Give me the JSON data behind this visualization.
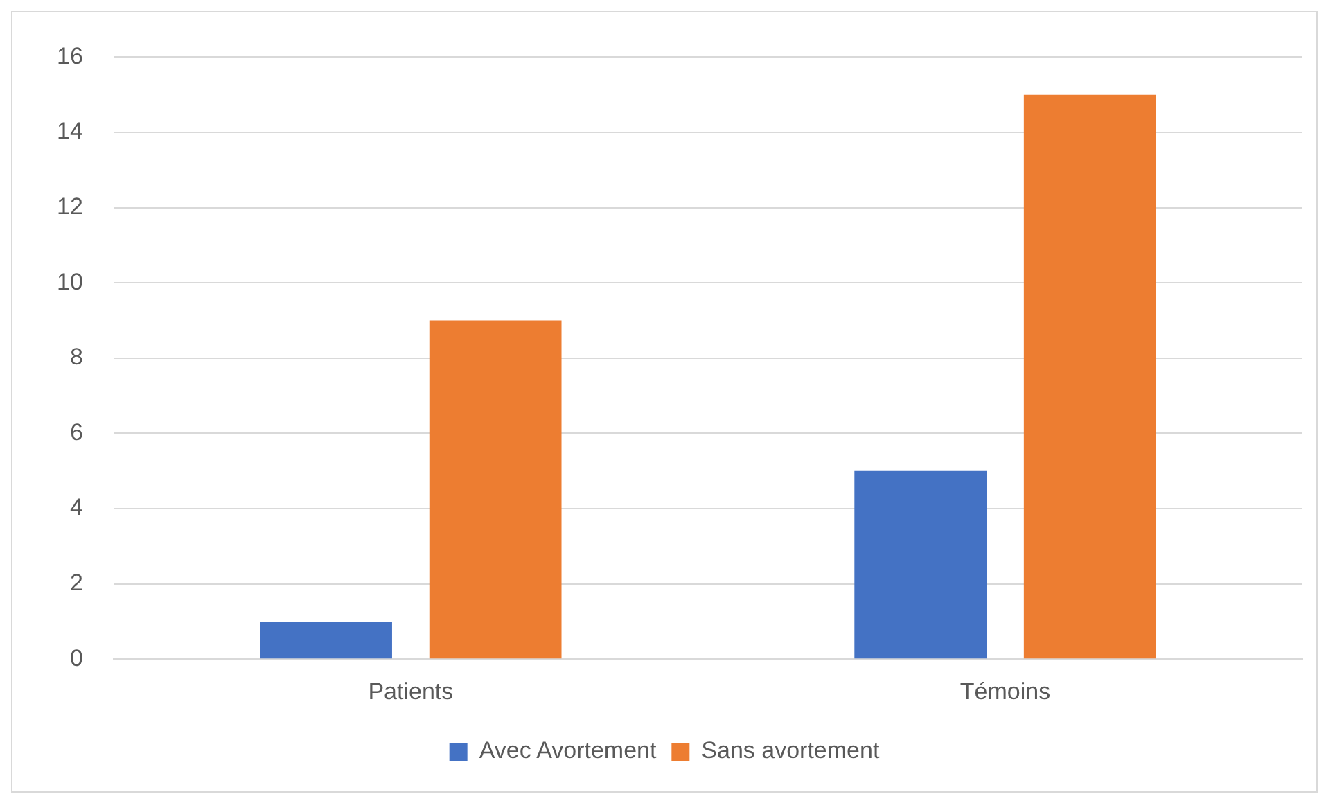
{
  "chart_data": {
    "type": "bar",
    "categories": [
      "Patients",
      "Témoins"
    ],
    "series": [
      {
        "name": "Avec Avortement",
        "color": "#4472c4",
        "values": [
          1,
          5
        ]
      },
      {
        "name": "Sans avortement",
        "color": "#ed7d31",
        "values": [
          9,
          15
        ]
      }
    ],
    "ylim": [
      0,
      16
    ],
    "yticks": [
      0,
      2,
      4,
      6,
      8,
      10,
      12,
      14,
      16
    ],
    "grid": "y",
    "legend": "bottom"
  }
}
